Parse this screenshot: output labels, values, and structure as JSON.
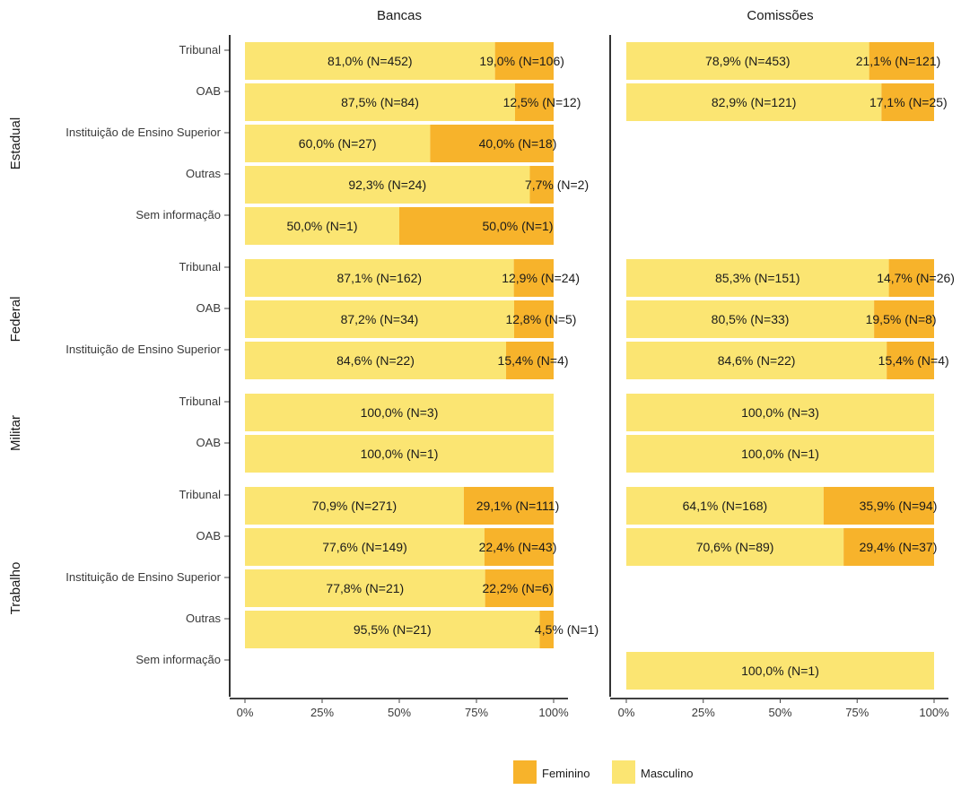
{
  "chart_data": {
    "type": "bar",
    "orientation": "horizontal",
    "stacked": true,
    "normalized_percent": true,
    "panels": [
      "Bancas",
      "Comissões"
    ],
    "x_tick_labels": [
      "0%",
      "25%",
      "50%",
      "75%",
      "100%"
    ],
    "xlim": [
      0,
      100
    ],
    "legend": {
      "position": "bottom",
      "entries": [
        {
          "name": "Feminino",
          "color": "#F7B32B"
        },
        {
          "name": "Masculino",
          "color": "#FBE572"
        }
      ]
    },
    "colors": {
      "Feminino": "#F7B32B",
      "Masculino": "#FBE572"
    },
    "groups": [
      {
        "name": "Estadual",
        "categories": [
          "Tribunal",
          "OAB",
          "Instituição de Ensino Superior",
          "Outras",
          "Sem informação"
        ],
        "data": {
          "Bancas": [
            {
              "masc": 81.0,
              "fem": 19.0,
              "masc_label": "81,0% (N=452)",
              "fem_label": "19,0% (N=106)"
            },
            {
              "masc": 87.5,
              "fem": 12.5,
              "masc_label": "87,5% (N=84)",
              "fem_label": "12,5% (N=12)"
            },
            {
              "masc": 60.0,
              "fem": 40.0,
              "masc_label": "60,0% (N=27)",
              "fem_label": "40,0% (N=18)"
            },
            {
              "masc": 92.3,
              "fem": 7.7,
              "masc_label": "92,3% (N=24)",
              "fem_label": "7,7% (N=2)"
            },
            {
              "masc": 50.0,
              "fem": 50.0,
              "masc_label": "50,0% (N=1)",
              "fem_label": "50,0% (N=1)"
            }
          ],
          "Comissões": [
            {
              "masc": 78.9,
              "fem": 21.1,
              "masc_label": "78,9% (N=453)",
              "fem_label": "21,1% (N=121)"
            },
            {
              "masc": 82.9,
              "fem": 17.1,
              "masc_label": "82,9% (N=121)",
              "fem_label": "17,1% (N=25)"
            },
            null,
            null,
            null
          ]
        }
      },
      {
        "name": "Federal",
        "categories": [
          "Tribunal",
          "OAB",
          "Instituição de Ensino Superior"
        ],
        "data": {
          "Bancas": [
            {
              "masc": 87.1,
              "fem": 12.9,
              "masc_label": "87,1% (N=162)",
              "fem_label": "12,9% (N=24)"
            },
            {
              "masc": 87.2,
              "fem": 12.8,
              "masc_label": "87,2% (N=34)",
              "fem_label": "12,8% (N=5)"
            },
            {
              "masc": 84.6,
              "fem": 15.4,
              "masc_label": "84,6% (N=22)",
              "fem_label": "15,4% (N=4)"
            }
          ],
          "Comissões": [
            {
              "masc": 85.3,
              "fem": 14.7,
              "masc_label": "85,3% (N=151)",
              "fem_label": "14,7% (N=26)"
            },
            {
              "masc": 80.5,
              "fem": 19.5,
              "masc_label": "80,5% (N=33)",
              "fem_label": "19,5% (N=8)"
            },
            {
              "masc": 84.6,
              "fem": 15.4,
              "masc_label": "84,6% (N=22)",
              "fem_label": "15,4% (N=4)"
            }
          ]
        }
      },
      {
        "name": "Militar",
        "categories": [
          "Tribunal",
          "OAB"
        ],
        "data": {
          "Bancas": [
            {
              "masc": 100.0,
              "fem": 0,
              "masc_label": "100,0% (N=3)",
              "fem_label": ""
            },
            {
              "masc": 100.0,
              "fem": 0,
              "masc_label": "100,0% (N=1)",
              "fem_label": ""
            }
          ],
          "Comissões": [
            {
              "masc": 100.0,
              "fem": 0,
              "masc_label": "100,0% (N=3)",
              "fem_label": ""
            },
            {
              "masc": 100.0,
              "fem": 0,
              "masc_label": "100,0% (N=1)",
              "fem_label": ""
            }
          ]
        }
      },
      {
        "name": "Trabalho",
        "categories": [
          "Tribunal",
          "OAB",
          "Instituição de Ensino Superior",
          "Outras",
          "Sem informação"
        ],
        "data": {
          "Bancas": [
            {
              "masc": 70.9,
              "fem": 29.1,
              "masc_label": "70,9% (N=271)",
              "fem_label": "29,1% (N=111)"
            },
            {
              "masc": 77.6,
              "fem": 22.4,
              "masc_label": "77,6% (N=149)",
              "fem_label": "22,4% (N=43)"
            },
            {
              "masc": 77.8,
              "fem": 22.2,
              "masc_label": "77,8% (N=21)",
              "fem_label": "22,2% (N=6)"
            },
            {
              "masc": 95.5,
              "fem": 4.5,
              "masc_label": "95,5% (N=21)",
              "fem_label": "4,5% (N=1)"
            },
            null
          ],
          "Comissões": [
            {
              "masc": 64.1,
              "fem": 35.9,
              "masc_label": "64,1% (N=168)",
              "fem_label": "35,9% (N=94)"
            },
            {
              "masc": 70.6,
              "fem": 29.4,
              "masc_label": "70,6% (N=89)",
              "fem_label": "29,4% (N=37)"
            },
            null,
            null,
            {
              "masc": 100.0,
              "fem": 0,
              "masc_label": "100,0% (N=1)",
              "fem_label": ""
            }
          ]
        }
      }
    ]
  }
}
